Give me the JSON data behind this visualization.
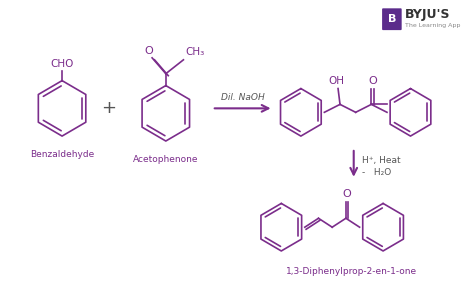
{
  "bg_color": "#ffffff",
  "purple": "#7B2D8B",
  "label_color": "#7B2D8B",
  "byju_color": "#6B2D8B",
  "labels": {
    "benzaldehyde": "Benzaldehyde",
    "acetophenone": "Acetophenone",
    "product2": "1,3-Diphenylprop-2-en-1-one",
    "reagent1": "Dil. NaOH",
    "reagent2_1": "H⁺, Heat",
    "reagent2_2": "-   H₂O"
  }
}
